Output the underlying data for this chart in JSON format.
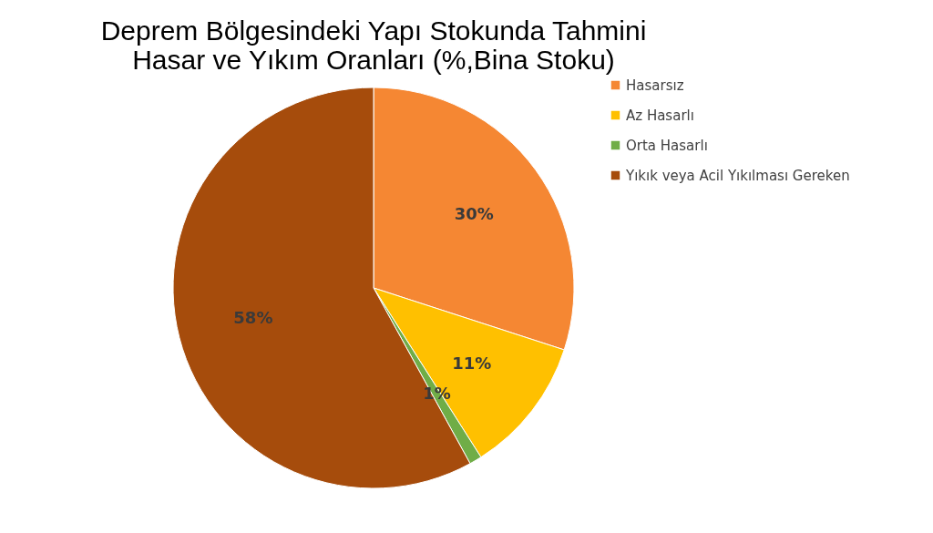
{
  "chart_data": {
    "type": "pie",
    "title": "Deprem Bölgesindeki Yapı Stokunda Tahmini\nHasar ve Yıkım Oranları (%,Bina Stoku)",
    "categories": [
      "Hasarsız",
      "Az Hasarlı",
      "Orta Hasarlı",
      "Yıkık veya Acil Yıkılması Gereken"
    ],
    "values": [
      30,
      11,
      1,
      58
    ],
    "colors": [
      "#f58733",
      "#ffc000",
      "#70ad47",
      "#a64c0c"
    ],
    "value_labels": [
      "30%",
      "11%",
      "1%",
      "58%"
    ],
    "legend": "right"
  }
}
